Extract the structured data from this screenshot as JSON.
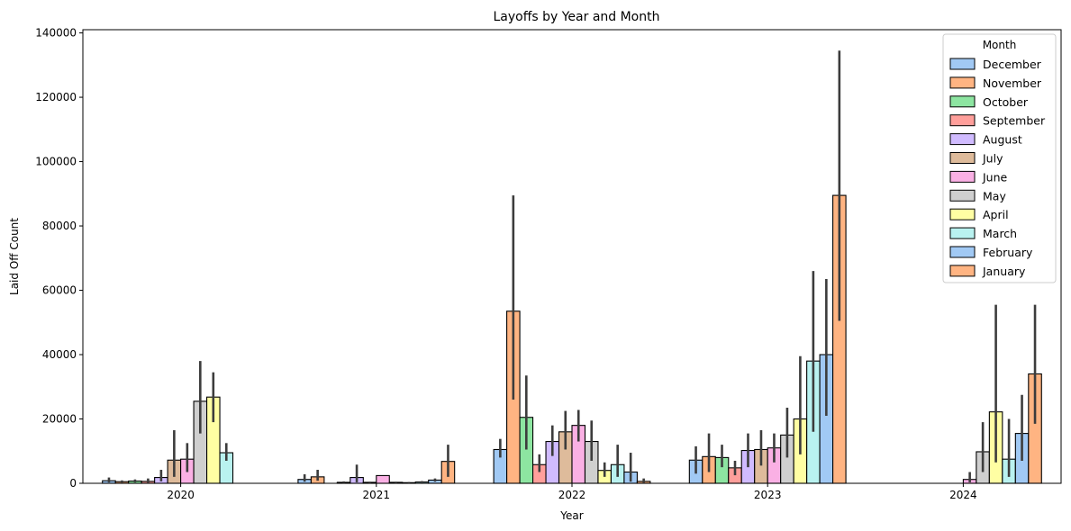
{
  "chart_data": {
    "type": "bar",
    "title": "Layoffs by Year and Month",
    "xlabel": "Year",
    "ylabel": "Laid Off Count",
    "ylim": [
      0,
      141000
    ],
    "yticks": [
      0,
      20000,
      40000,
      60000,
      80000,
      100000,
      120000,
      140000
    ],
    "ytick_labels": [
      "0",
      "20000",
      "40000",
      "60000",
      "80000",
      "100000",
      "120000",
      "140000"
    ],
    "categories": [
      "2020",
      "2021",
      "2022",
      "2023",
      "2024"
    ],
    "legend": {
      "title": "Month",
      "position": "top-right"
    },
    "grid": false,
    "error_bars": true,
    "series": [
      {
        "name": "December",
        "color": "#a1c9f4",
        "values": [
          800,
          1200,
          10500,
          7200,
          null
        ],
        "err_low": [
          300,
          500,
          8000,
          3000,
          null
        ],
        "err_high": [
          1800,
          2800,
          13800,
          11500,
          null
        ]
      },
      {
        "name": "November",
        "color": "#ffb482",
        "values": [
          500,
          2000,
          53500,
          8300,
          null
        ],
        "err_low": [
          200,
          800,
          26000,
          3500,
          null
        ],
        "err_high": [
          900,
          4200,
          89500,
          15500,
          null
        ]
      },
      {
        "name": "October",
        "color": "#8de5a1",
        "values": [
          700,
          null,
          20500,
          8000,
          null
        ],
        "err_low": [
          300,
          null,
          10500,
          5000,
          null
        ],
        "err_high": [
          1200,
          null,
          33500,
          12000,
          null
        ]
      },
      {
        "name": "September",
        "color": "#ff9f9b",
        "values": [
          600,
          300,
          5800,
          4800,
          null
        ],
        "err_low": [
          200,
          100,
          3500,
          2500,
          null
        ],
        "err_high": [
          1500,
          600,
          9000,
          7000,
          null
        ]
      },
      {
        "name": "August",
        "color": "#d0bbff",
        "values": [
          1800,
          1800,
          13000,
          10200,
          null
        ],
        "err_low": [
          600,
          300,
          8500,
          5000,
          null
        ],
        "err_high": [
          4200,
          5800,
          18000,
          15500,
          null
        ]
      },
      {
        "name": "July",
        "color": "#debb9b",
        "values": [
          7200,
          300,
          16000,
          10500,
          null
        ],
        "err_low": [
          2000,
          100,
          10500,
          5500,
          null
        ],
        "err_high": [
          16500,
          500,
          22500,
          16500,
          null
        ]
      },
      {
        "name": "June",
        "color": "#fab0e4",
        "values": [
          7500,
          2400,
          18000,
          11000,
          1200
        ],
        "err_low": [
          3500,
          2400,
          13000,
          6500,
          300
        ],
        "err_high": [
          12500,
          2400,
          22800,
          15500,
          3500
        ]
      },
      {
        "name": "May",
        "color": "#cfcfcf",
        "values": [
          25500,
          300,
          13000,
          15000,
          9800
        ],
        "err_low": [
          15500,
          100,
          7000,
          8000,
          3500
        ],
        "err_high": [
          38000,
          500,
          19500,
          23500,
          19000
        ]
      },
      {
        "name": "April",
        "color": "#fffea3",
        "values": [
          26800,
          200,
          4000,
          20000,
          22200
        ],
        "err_low": [
          19000,
          100,
          2000,
          9000,
          6500
        ],
        "err_high": [
          34500,
          400,
          6500,
          39500,
          55500
        ]
      },
      {
        "name": "March",
        "color": "#b9f2f0",
        "values": [
          9500,
          400,
          5800,
          38000,
          7500
        ],
        "err_low": [
          7000,
          200,
          2000,
          16000,
          2000
        ],
        "err_high": [
          12500,
          700,
          12000,
          66000,
          20000
        ]
      },
      {
        "name": "February",
        "color": "#a1c9f4",
        "values": [
          null,
          1000,
          3500,
          40000,
          15500
        ],
        "err_low": [
          null,
          500,
          500,
          21000,
          7000
        ],
        "err_high": [
          null,
          1500,
          9500,
          63500,
          27500
        ]
      },
      {
        "name": "January",
        "color": "#ffb482",
        "values": [
          null,
          6800,
          600,
          89500,
          34000
        ],
        "err_low": [
          null,
          2000,
          200,
          50500,
          18500
        ],
        "err_high": [
          null,
          12000,
          1500,
          134500,
          55500
        ]
      }
    ]
  }
}
